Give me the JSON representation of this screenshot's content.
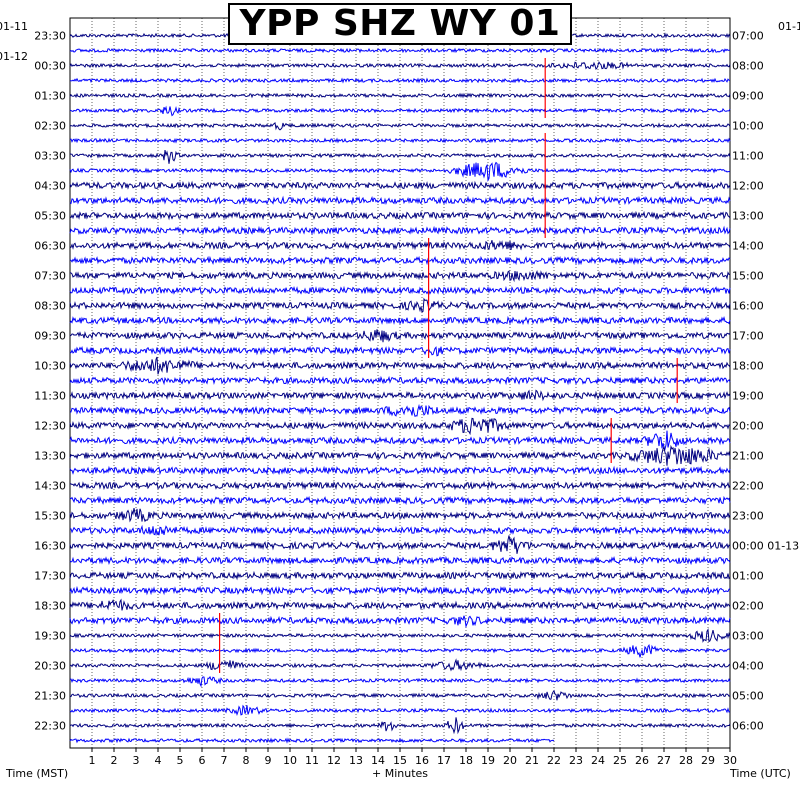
{
  "chart_data": {
    "type": "heatmap",
    "title": "YPP SHZ WY 01",
    "xlabel": "+ Minutes",
    "ylabel_left": "Time (MST)",
    "ylabel_right": "Time (UTC)",
    "xlim": [
      0,
      30
    ],
    "x_ticks": [
      "1",
      "2",
      "3",
      "4",
      "5",
      "6",
      "7",
      "8",
      "9",
      "10",
      "11",
      "12",
      "13",
      "14",
      "15",
      "16",
      "17",
      "18",
      "19",
      "20",
      "21",
      "22",
      "23",
      "24",
      "25",
      "26",
      "27",
      "28",
      "29",
      "30"
    ],
    "top_date_left": "01-11",
    "top_date_left_2": "01-12",
    "top_date_right": "01-1",
    "left_hour_labels": [
      "23:30",
      "00:30",
      "01:30",
      "02:30",
      "03:30",
      "04:30",
      "05:30",
      "06:30",
      "07:30",
      "08:30",
      "09:30",
      "10:30",
      "11:30",
      "12:30",
      "13:30",
      "14:30",
      "15:30",
      "16:30",
      "17:30",
      "18:30",
      "19:30",
      "20:30",
      "21:30",
      "22:30"
    ],
    "right_hour_labels": [
      "07:00",
      "08:00",
      "09:00",
      "10:00",
      "11:00",
      "12:00",
      "13:00",
      "14:00",
      "15:00",
      "16:00",
      "17:00",
      "18:00",
      "19:00",
      "20:00",
      "21:00",
      "22:00",
      "23:00",
      "00:00 01-13",
      "01:00",
      "02:00",
      "03:00",
      "04:00",
      "05:00",
      "06:00"
    ],
    "trace_count": 48,
    "trace_colors": [
      "#000080",
      "#0000ff"
    ],
    "accent_color": "#ff0000",
    "last_trace_end_minute": 22
  }
}
